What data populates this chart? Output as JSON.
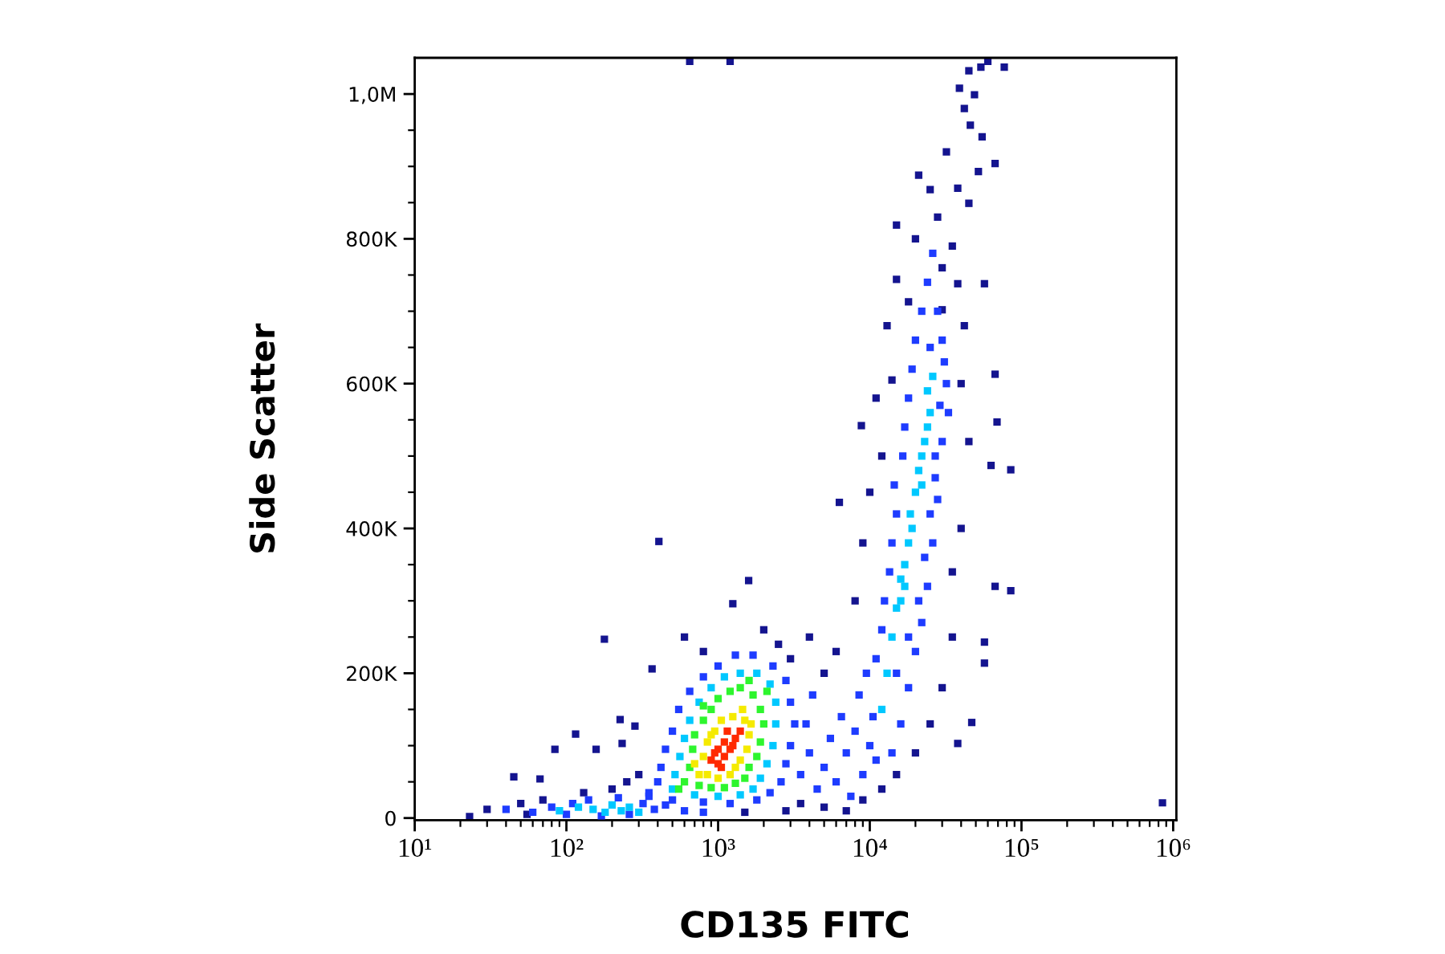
{
  "chart_data": {
    "type": "scatter",
    "xlabel": "CD135 FITC",
    "ylabel": "Side Scatter",
    "log": "x",
    "grid": false,
    "marker": "square",
    "xlim": [
      10,
      1050000
    ],
    "ylim": [
      -3000,
      1050000
    ],
    "xticks": [
      {
        "value": 10,
        "label": "10¹"
      },
      {
        "value": 20,
        "label": null
      },
      {
        "value": 30,
        "label": null
      },
      {
        "value": 40,
        "label": null
      },
      {
        "value": 50,
        "label": null
      },
      {
        "value": 60,
        "label": null
      },
      {
        "value": 70,
        "label": null
      },
      {
        "value": 80,
        "label": null
      },
      {
        "value": 90,
        "label": null
      },
      {
        "value": 100,
        "label": "10²"
      },
      {
        "value": 200,
        "label": null
      },
      {
        "value": 300,
        "label": null
      },
      {
        "value": 400,
        "label": null
      },
      {
        "value": 500,
        "label": null
      },
      {
        "value": 600,
        "label": null
      },
      {
        "value": 700,
        "label": null
      },
      {
        "value": 800,
        "label": null
      },
      {
        "value": 900,
        "label": null
      },
      {
        "value": 1000,
        "label": "10³"
      },
      {
        "value": 2000,
        "label": null
      },
      {
        "value": 3000,
        "label": null
      },
      {
        "value": 4000,
        "label": null
      },
      {
        "value": 5000,
        "label": null
      },
      {
        "value": 6000,
        "label": null
      },
      {
        "value": 7000,
        "label": null
      },
      {
        "value": 8000,
        "label": null
      },
      {
        "value": 9000,
        "label": null
      },
      {
        "value": 10000,
        "label": "10⁴"
      },
      {
        "value": 20000,
        "label": null
      },
      {
        "value": 30000,
        "label": null
      },
      {
        "value": 40000,
        "label": null
      },
      {
        "value": 50000,
        "label": null
      },
      {
        "value": 60000,
        "label": null
      },
      {
        "value": 70000,
        "label": null
      },
      {
        "value": 80000,
        "label": null
      },
      {
        "value": 90000,
        "label": null
      },
      {
        "value": 100000,
        "label": "10⁵"
      },
      {
        "value": 200000,
        "label": null
      },
      {
        "value": 300000,
        "label": null
      },
      {
        "value": 400000,
        "label": null
      },
      {
        "value": 500000,
        "label": null
      },
      {
        "value": 600000,
        "label": null
      },
      {
        "value": 700000,
        "label": null
      },
      {
        "value": 800000,
        "label": null
      },
      {
        "value": 900000,
        "label": null
      },
      {
        "value": 1000000,
        "label": "10⁶"
      }
    ],
    "yticks": [
      0,
      {
        "value": 50000,
        "label": null
      },
      {
        "value": 100000,
        "label": null
      },
      {
        "value": 150000,
        "label": null
      },
      {
        "value": 200000,
        "label": "200K"
      },
      {
        "value": 250000,
        "label": null
      },
      {
        "value": 300000,
        "label": null
      },
      {
        "value": 350000,
        "label": null
      },
      {
        "value": 400000,
        "label": "400K"
      },
      {
        "value": 450000,
        "label": null
      },
      {
        "value": 500000,
        "label": null
      },
      {
        "value": 550000,
        "label": null
      },
      {
        "value": 600000,
        "label": "600K"
      },
      {
        "value": 650000,
        "label": null
      },
      {
        "value": 700000,
        "label": null
      },
      {
        "value": 750000,
        "label": null
      },
      {
        "value": 800000,
        "label": "800K"
      },
      {
        "value": 850000,
        "label": null
      },
      {
        "value": 900000,
        "label": null
      },
      {
        "value": 950000,
        "label": null
      },
      {
        "value": 1000000,
        "label": "1,0M"
      }
    ],
    "series": [
      {
        "color": "#14148f",
        "x": [
          23,
          45,
          67,
          84,
          115,
          157,
          178,
          226,
          233,
          283,
          367,
          407,
          1250,
          1590,
          850000,
          85000,
          67000,
          57000,
          57000,
          47000,
          38000,
          45000,
          54000,
          77000,
          39000,
          49000,
          46000,
          55000,
          67000,
          52000,
          21000,
          25000,
          45000,
          15000,
          35000,
          15000,
          38000,
          18000,
          30000,
          57000,
          67000,
          14000,
          11000,
          8800,
          69000,
          63000,
          85000,
          6300,
          650,
          1200,
          60000,
          600,
          800,
          2000,
          2500,
          3000,
          4000,
          5000,
          6000,
          3500,
          5000,
          7000,
          9000,
          12000,
          15000,
          20000,
          25000,
          30000,
          35000,
          40000,
          45000,
          8000,
          9000,
          10000,
          12000,
          35000,
          40000,
          42000,
          13000,
          30000,
          20000,
          28000,
          38000,
          32000,
          42000,
          30,
          50,
          55,
          70,
          130,
          200,
          250,
          300,
          2800,
          1500
        ],
        "values": [
          2000,
          57000,
          54000,
          95000,
          116000,
          95000,
          247000,
          136000,
          103000,
          127000,
          206000,
          382000,
          296000,
          328000,
          21000,
          314000,
          320000,
          243000,
          214000,
          132000,
          103000,
          1032000,
          1037000,
          1037000,
          1008000,
          999000,
          957000,
          941000,
          904000,
          893000,
          888000,
          868000,
          849000,
          819000,
          790000,
          744000,
          738000,
          713000,
          702000,
          738000,
          613000,
          605000,
          580000,
          542000,
          547000,
          487000,
          481000,
          436000,
          1045000,
          1045000,
          1045000,
          250000,
          230000,
          260000,
          240000,
          220000,
          250000,
          200000,
          230000,
          20000,
          15000,
          10000,
          25000,
          40000,
          60000,
          90000,
          130000,
          180000,
          250000,
          400000,
          520000,
          300000,
          380000,
          450000,
          500000,
          340000,
          600000,
          680000,
          680000,
          760000,
          800000,
          830000,
          870000,
          920000,
          980000,
          12000,
          20000,
          5000,
          25000,
          35000,
          40000,
          50000,
          60000,
          10000,
          8000
        ]
      },
      {
        "color": "#1e3cff",
        "x": [
          400,
          420,
          450,
          500,
          550,
          650,
          800,
          1000,
          1300,
          1700,
          2300,
          2800,
          3000,
          3200,
          3000,
          2800,
          2600,
          2200,
          1800,
          1200,
          800,
          500,
          350,
          40,
          60,
          80,
          100,
          110,
          140,
          170,
          220,
          260,
          320,
          380,
          450,
          600,
          800,
          350,
          3500,
          4000,
          4500,
          5000,
          5500,
          6000,
          6500,
          7000,
          7500,
          8000,
          8500,
          9000,
          9500,
          10000,
          3800,
          4200,
          11000,
          10500,
          11000,
          12000,
          12500,
          13500,
          14000,
          15000,
          14500,
          16500,
          17000,
          18000,
          19000,
          20000,
          22000,
          24000,
          26000,
          30000,
          32000,
          30000,
          28000,
          26000,
          24000,
          22000,
          20000,
          18000,
          16000,
          14000,
          33000,
          27000,
          15000,
          18000,
          21000,
          23000,
          25000,
          27000,
          29000,
          31000,
          28000,
          25000
        ],
        "values": [
          50000,
          70000,
          95000,
          120000,
          150000,
          175000,
          195000,
          210000,
          225000,
          225000,
          210000,
          190000,
          160000,
          130000,
          100000,
          75000,
          50000,
          35000,
          25000,
          20000,
          22000,
          25000,
          35000,
          12000,
          8000,
          15000,
          5000,
          20000,
          25000,
          3000,
          28000,
          5000,
          20000,
          12000,
          18000,
          10000,
          8000,
          30000,
          60000,
          90000,
          40000,
          70000,
          110000,
          50000,
          140000,
          90000,
          30000,
          120000,
          170000,
          60000,
          200000,
          100000,
          130000,
          170000,
          80000,
          140000,
          220000,
          260000,
          300000,
          340000,
          380000,
          420000,
          460000,
          500000,
          540000,
          580000,
          620000,
          660000,
          700000,
          740000,
          780000,
          660000,
          600000,
          520000,
          440000,
          380000,
          320000,
          270000,
          230000,
          180000,
          130000,
          90000,
          560000,
          470000,
          200000,
          250000,
          300000,
          360000,
          420000,
          500000,
          570000,
          630000,
          700000,
          650000
        ]
      },
      {
        "color": "#00c8ff",
        "x": [
          500,
          520,
          560,
          600,
          650,
          750,
          900,
          1100,
          1400,
          1800,
          2200,
          2400,
          2400,
          2300,
          2100,
          1900,
          1700,
          1400,
          1000,
          700,
          150,
          180,
          200,
          230,
          260,
          300,
          120,
          90,
          12000,
          13000,
          14000,
          15000,
          16000,
          17000,
          18000,
          18500,
          19000,
          20000,
          21000,
          22000,
          23000,
          24000,
          25000,
          24000,
          26000,
          22000,
          16000,
          17000
        ],
        "values": [
          40000,
          60000,
          85000,
          110000,
          135000,
          160000,
          180000,
          195000,
          200000,
          200000,
          185000,
          160000,
          130000,
          100000,
          75000,
          55000,
          40000,
          32000,
          30000,
          32000,
          12000,
          8000,
          18000,
          10000,
          15000,
          8000,
          15000,
          10000,
          150000,
          200000,
          250000,
          290000,
          330000,
          350000,
          380000,
          420000,
          400000,
          450000,
          480000,
          500000,
          520000,
          540000,
          560000,
          590000,
          610000,
          460000,
          300000,
          320000
        ]
      },
      {
        "color": "#2ef52e",
        "x": [
          600,
          650,
          680,
          700,
          800,
          900,
          1000,
          1200,
          1400,
          1700,
          1900,
          2000,
          1900,
          1800,
          1600,
          1500,
          1300,
          1100,
          900,
          750,
          550,
          2100,
          1600,
          800
        ],
        "values": [
          50000,
          70000,
          95000,
          115000,
          135000,
          150000,
          165000,
          175000,
          180000,
          170000,
          150000,
          130000,
          105000,
          85000,
          70000,
          55000,
          48000,
          42000,
          42000,
          45000,
          40000,
          175000,
          190000,
          155000
        ]
      },
      {
        "color": "#f5ea00",
        "x": [
          750,
          800,
          850,
          950,
          1050,
          1250,
          1500,
          1600,
          1550,
          1400,
          1300,
          1200,
          1000,
          850,
          700,
          1450,
          1650,
          900
        ],
        "values": [
          60000,
          85000,
          105000,
          120000,
          135000,
          140000,
          135000,
          115000,
          95000,
          80000,
          70000,
          60000,
          55000,
          60000,
          75000,
          150000,
          130000,
          115000
        ]
      },
      {
        "color": "#ff2a00",
        "x": [
          900,
          1000,
          1100,
          1200,
          1000,
          1100,
          1300,
          950,
          1150,
          1250,
          1050,
          1400
        ],
        "values": [
          80000,
          75000,
          85000,
          95000,
          95000,
          105000,
          110000,
          90000,
          120000,
          100000,
          70000,
          120000
        ]
      }
    ]
  }
}
